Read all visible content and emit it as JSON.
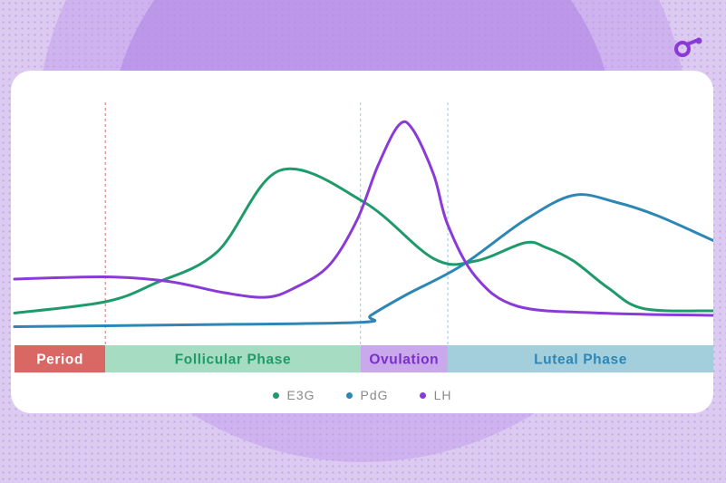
{
  "chart_data": {
    "type": "line",
    "x_range": [
      0,
      100
    ],
    "y_range": [
      0,
      100
    ],
    "series": [
      {
        "name": "E3G",
        "color": "#1f9a6b",
        "points": [
          [
            0,
            9
          ],
          [
            13,
            14
          ],
          [
            20,
            22
          ],
          [
            29,
            36
          ],
          [
            38,
            72
          ],
          [
            50,
            58
          ],
          [
            60,
            33
          ],
          [
            66,
            32
          ],
          [
            73,
            40
          ],
          [
            76,
            38
          ],
          [
            80,
            32
          ],
          [
            85,
            20
          ],
          [
            90,
            11
          ],
          [
            100,
            10
          ]
        ]
      },
      {
        "name": "PdG",
        "color": "#2d86b5",
        "points": [
          [
            0,
            3
          ],
          [
            30,
            4
          ],
          [
            50,
            5
          ],
          [
            51,
            8
          ],
          [
            56,
            17
          ],
          [
            64,
            30
          ],
          [
            73,
            50
          ],
          [
            80,
            61
          ],
          [
            86,
            58
          ],
          [
            92,
            52
          ],
          [
            100,
            41
          ]
        ]
      },
      {
        "name": "LH",
        "color": "#8a3ad6",
        "points": [
          [
            0,
            24
          ],
          [
            13,
            25
          ],
          [
            22,
            23
          ],
          [
            30,
            18
          ],
          [
            36,
            16
          ],
          [
            40,
            20
          ],
          [
            45,
            30
          ],
          [
            49,
            50
          ],
          [
            52,
            74
          ],
          [
            55,
            92
          ],
          [
            57,
            90
          ],
          [
            60,
            70
          ],
          [
            62,
            48
          ],
          [
            66,
            25
          ],
          [
            72,
            12
          ],
          [
            84,
            9
          ],
          [
            100,
            8
          ]
        ]
      }
    ],
    "phases": [
      {
        "label": "Period",
        "start": 0,
        "end": 13,
        "color": "#d96763",
        "text_color": "#ffffff",
        "divider_color": "#e08a88"
      },
      {
        "label": "Follicular Phase",
        "start": 13,
        "end": 49.5,
        "color": "#a6dcc1",
        "text_color": "#1f9a6b",
        "divider_color": "#a8d3e6"
      },
      {
        "label": "Ovulation",
        "start": 49.5,
        "end": 62,
        "color": "#c9a9ec",
        "text_color": "#7b2fc9",
        "divider_color": "#a8d3e6"
      },
      {
        "label": "Luteal Phase",
        "start": 62,
        "end": 100,
        "color": "#a3cfdc",
        "text_color": "#2d86b5",
        "divider_color": null
      }
    ],
    "grid": false,
    "legend": "bottom-center"
  },
  "brand": {
    "logo_icon": "brand-logo-icon",
    "color": "#8a3ad6"
  }
}
